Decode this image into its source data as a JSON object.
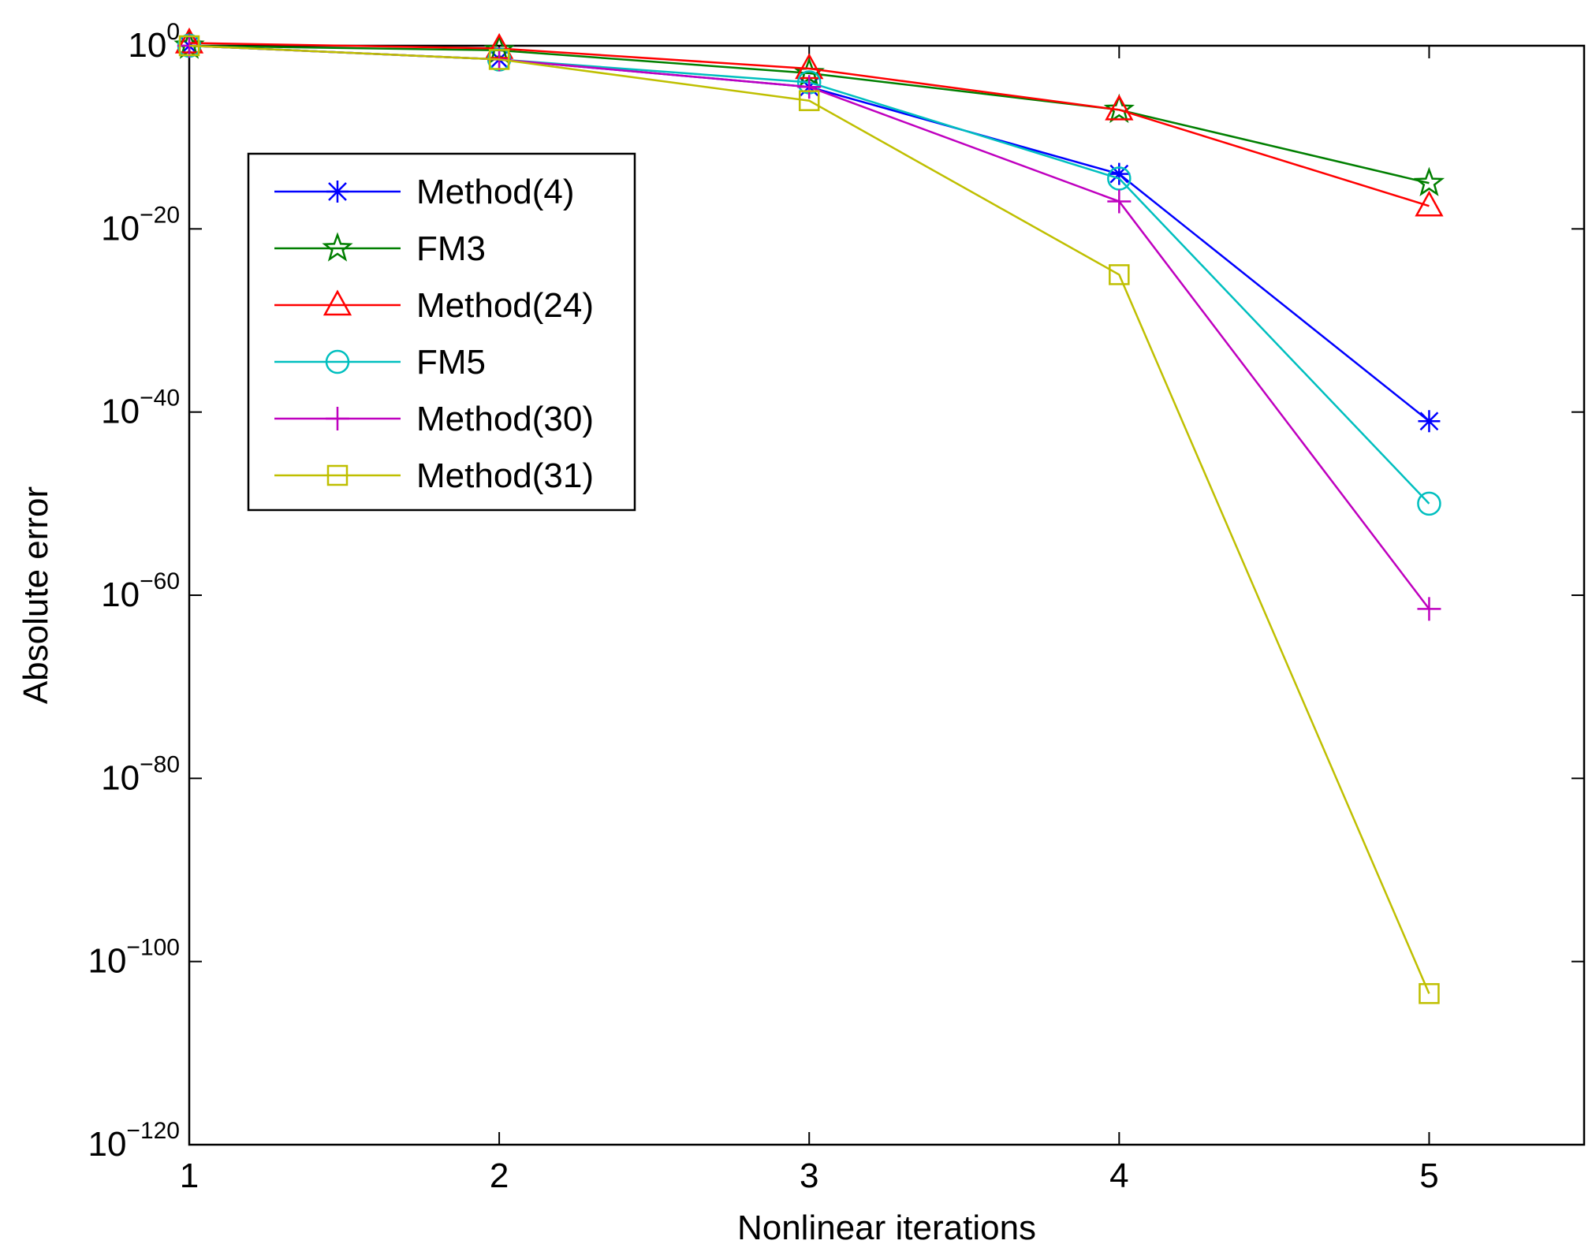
{
  "chart_data": {
    "type": "line",
    "title": "",
    "xlabel": "Nonlinear iterations",
    "ylabel": "Absolute error",
    "y_scale": "log",
    "xlim": [
      1,
      5.5
    ],
    "ylim_exponent": [
      -120,
      0
    ],
    "x": [
      1,
      2,
      3,
      4,
      5
    ],
    "x_ticks": [
      {
        "value": 1,
        "label": "1"
      },
      {
        "value": 2,
        "label": "2"
      },
      {
        "value": 3,
        "label": "3"
      },
      {
        "value": 4,
        "label": "4"
      },
      {
        "value": 5,
        "label": "5"
      }
    ],
    "y_ticks": [
      {
        "exp": 0,
        "base": "10",
        "sup": "0"
      },
      {
        "exp": -20,
        "base": "10",
        "sup": "−20"
      },
      {
        "exp": -40,
        "base": "10",
        "sup": "−40"
      },
      {
        "exp": -60,
        "base": "10",
        "sup": "−60"
      },
      {
        "exp": -80,
        "base": "10",
        "sup": "−80"
      },
      {
        "exp": -100,
        "base": "10",
        "sup": "−100"
      },
      {
        "exp": -120,
        "base": "10",
        "sup": "−120"
      }
    ],
    "legend_position": "upper-left",
    "grid": false,
    "series": [
      {
        "name": "Method(4)",
        "color": "#0000ff",
        "marker": "asterisk",
        "log10_values": [
          0,
          -1.5,
          -4.5,
          -14,
          -41
        ]
      },
      {
        "name": "FM3",
        "color": "#007f00",
        "marker": "star",
        "log10_values": [
          0,
          -0.5,
          -3,
          -7,
          -15
        ]
      },
      {
        "name": "Method(24)",
        "color": "#ff0000",
        "marker": "triangle",
        "log10_values": [
          0.3,
          -0.3,
          -2.5,
          -7,
          -17.5
        ]
      },
      {
        "name": "FM5",
        "color": "#00bfbf",
        "marker": "circle",
        "log10_values": [
          0,
          -1.5,
          -4,
          -14.5,
          -50
        ]
      },
      {
        "name": "Method(30)",
        "color": "#bf00bf",
        "marker": "plus",
        "log10_values": [
          0,
          -1.5,
          -4.5,
          -17,
          -61.5
        ]
      },
      {
        "name": "Method(31)",
        "color": "#bfbf00",
        "marker": "square",
        "log10_values": [
          0,
          -1.5,
          -6,
          -25,
          -103.5
        ]
      }
    ]
  }
}
